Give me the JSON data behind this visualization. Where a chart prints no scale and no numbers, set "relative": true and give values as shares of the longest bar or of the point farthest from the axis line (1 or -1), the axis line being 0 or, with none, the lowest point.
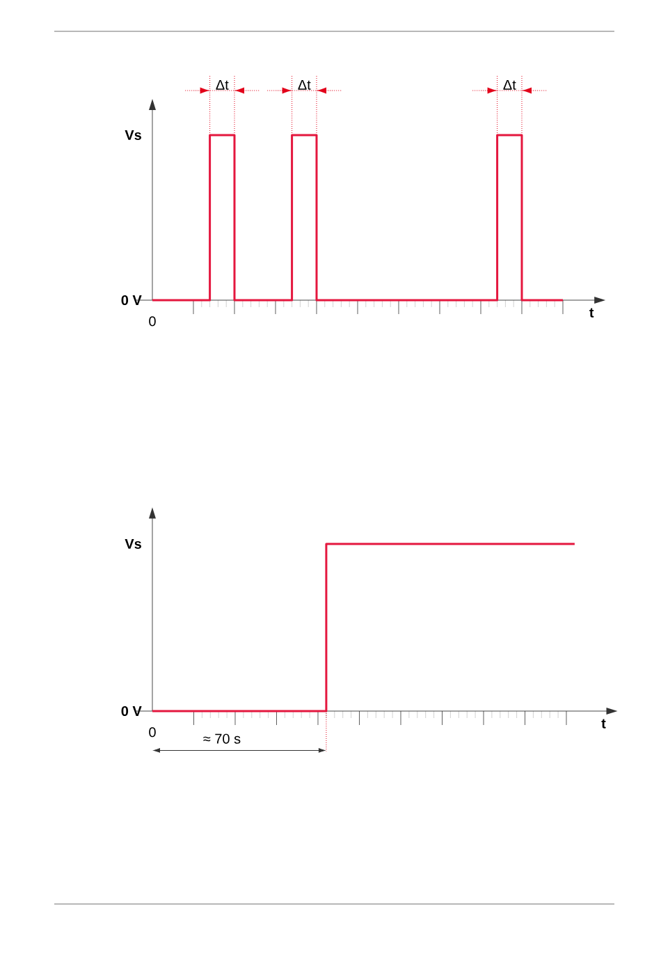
{
  "chart_data": [
    {
      "type": "step",
      "relative": true,
      "xlabel": "t",
      "annotations": [
        "Δt",
        "Δt",
        "Δt",
        "0",
        "0 V",
        "Vs"
      ],
      "categories": [
        null,
        null,
        null,
        null,
        null,
        null,
        null,
        null,
        null,
        null,
        null,
        null,
        null,
        null,
        null,
        null,
        null,
        null,
        null,
        null,
        null,
        null,
        null,
        null,
        null,
        null,
        null,
        null,
        null,
        null,
        null,
        null,
        null,
        null,
        null,
        null,
        null,
        null,
        null,
        null,
        null,
        null,
        null,
        null,
        null,
        null,
        null,
        null,
        null,
        null,
        null
      ],
      "series": [
        {
          "color": "#e4173e",
          "values": [
            0,
            0,
            0,
            0,
            0,
            0,
            0,
            1,
            1,
            1,
            0,
            0,
            0,
            0,
            0,
            0,
            0,
            1,
            1,
            1,
            0,
            0,
            0,
            0,
            0,
            0,
            0,
            0,
            0,
            0,
            0,
            0,
            0,
            0,
            0,
            0,
            0,
            0,
            0,
            0,
            0,
            0,
            1,
            1,
            1,
            0,
            0,
            0,
            0,
            0,
            0
          ]
        }
      ]
    },
    {
      "type": "step",
      "relative": true,
      "xlabel": "t",
      "annotations": [
        "≈ 70 s",
        "0",
        "0 V",
        "Vs"
      ],
      "categories": [
        null,
        null,
        null,
        null,
        null,
        null,
        null,
        null,
        null,
        null,
        null,
        null,
        null,
        null,
        null,
        null,
        null,
        null,
        null,
        null,
        null,
        null,
        null,
        null,
        null,
        null,
        null,
        null,
        null,
        null,
        null,
        null,
        null,
        null,
        null,
        null,
        null,
        null,
        null,
        null,
        null,
        null,
        null,
        null,
        null,
        null,
        null,
        null,
        null,
        null,
        null,
        null
      ],
      "series": [
        {
          "color": "#e4173e",
          "values": [
            0,
            0,
            0,
            0,
            0,
            0,
            0,
            0,
            0,
            0,
            0,
            0,
            0,
            0,
            0,
            0,
            0,
            0,
            0,
            0,
            0,
            1,
            1,
            1,
            1,
            1,
            1,
            1,
            1,
            1,
            1,
            1,
            1,
            1,
            1,
            1,
            1,
            1,
            1,
            1,
            1,
            1,
            1,
            1,
            1,
            1,
            1,
            1,
            1,
            1,
            1,
            1
          ]
        }
      ]
    }
  ]
}
